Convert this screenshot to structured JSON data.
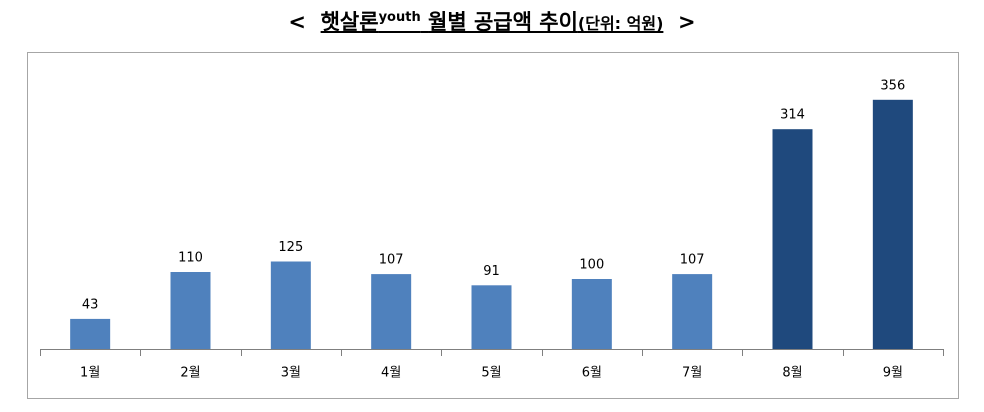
{
  "chart_data": {
    "type": "bar",
    "title": {
      "prefix": "<",
      "main": "햇살론",
      "superscript": "youth",
      "rest": "월별 공급액 추이",
      "unit": "(단위: 억원)",
      "suffix": ">"
    },
    "categories": [
      "1월",
      "2월",
      "3월",
      "4월",
      "5월",
      "6월",
      "7월",
      "8월",
      "9월"
    ],
    "values": [
      43,
      110,
      125,
      107,
      91,
      100,
      107,
      314,
      356
    ],
    "colors": [
      "#4f81bd",
      "#4f81bd",
      "#4f81bd",
      "#4f81bd",
      "#4f81bd",
      "#4f81bd",
      "#4f81bd",
      "#1f497d",
      "#1f497d"
    ],
    "ylim": [
      0,
      400
    ]
  }
}
